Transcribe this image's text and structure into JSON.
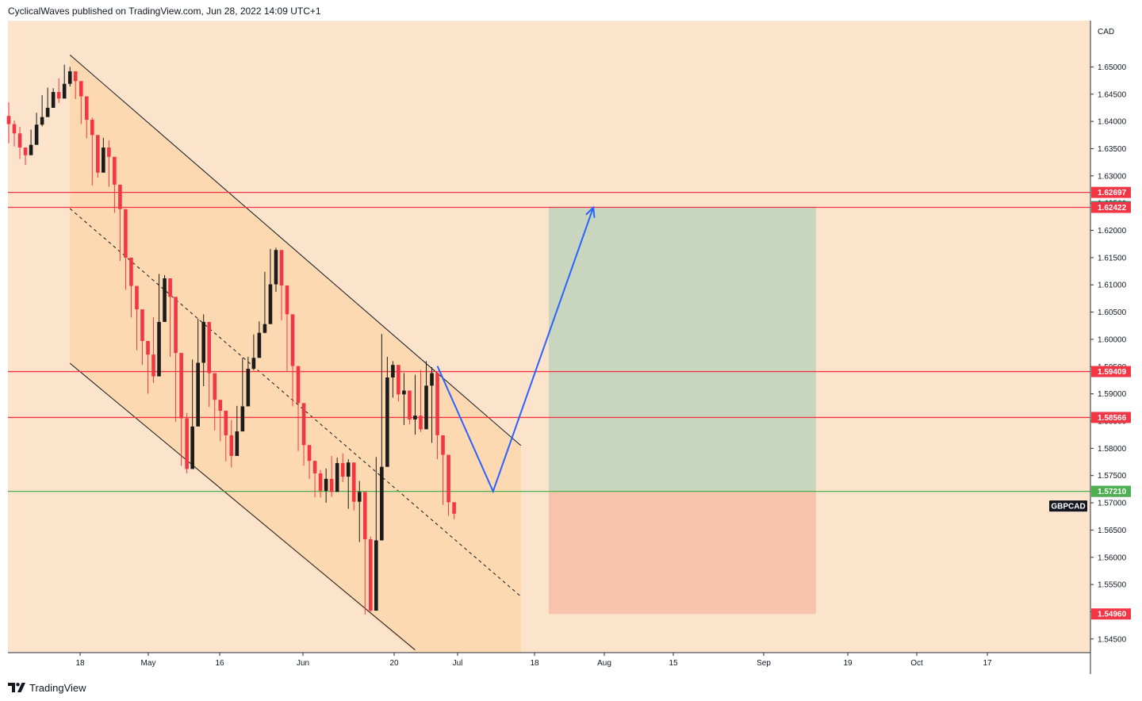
{
  "header": {
    "published_text": "CyclicalWaves published on TradingView.com, Jun 28, 2022 14:09 UTC+1"
  },
  "footer": {
    "brand": "TradingView",
    "logo_icon": "tradingview-logo-icon"
  },
  "colors": {
    "background": "#fbe4cb",
    "channel_fill": "#fdd9b1",
    "candle_up": "#1b1b1b",
    "candle_down": "#f23645",
    "resistance_line": "#f23645",
    "entry_line": "#4caf50",
    "path_line": "#2962ff",
    "target_zone": "#c8d6c0",
    "stop_zone": "#f8c3ad"
  },
  "chart_data": {
    "type": "candlestick",
    "symbol": "GBPCAD",
    "currency": "CAD",
    "ylim": [
      1.5425,
      1.6585
    ],
    "y_ticks": [
      "1.65000",
      "1.64500",
      "1.64000",
      "1.63500",
      "1.63000",
      "1.62500",
      "1.62000",
      "1.61500",
      "1.61000",
      "1.60500",
      "1.60000",
      "1.59500",
      "1.59000",
      "1.58500",
      "1.58000",
      "1.57500",
      "1.57000",
      "1.56500",
      "1.56000",
      "1.55500",
      "1.55000",
      "1.54500"
    ],
    "x_ticks": [
      "18",
      "May",
      "16",
      "Jun",
      "20",
      "Jul",
      "18",
      "Aug",
      "15",
      "Sep",
      "19",
      "Oct",
      "17"
    ],
    "horizontal_levels": [
      {
        "label": "1.62697",
        "value": 1.62697,
        "color": "#f23645",
        "line": true
      },
      {
        "label": "1.62436",
        "value": 1.62436,
        "color": "#089981",
        "line": false
      },
      {
        "label": "1.62422",
        "value": 1.62422,
        "color": "#f23645",
        "line": true
      },
      {
        "label": "1.59409",
        "value": 1.59409,
        "color": "#f23645",
        "line": true
      },
      {
        "label": "1.58566",
        "value": 1.58566,
        "color": "#f23645",
        "line": true
      },
      {
        "label": "1.57210",
        "value": 1.5721,
        "color": "#787b86",
        "line": false
      },
      {
        "label": "1.57210",
        "value": 1.5721,
        "color": "#4caf50",
        "line": true
      },
      {
        "label": "1.54960",
        "value": 1.5496,
        "color": "#f23645",
        "line": false
      }
    ],
    "symbol_tag_value": 1.5694,
    "projection_path": [
      {
        "bar": 77,
        "value": 1.5951
      },
      {
        "bar": 87,
        "value": 1.5721
      },
      {
        "bar": 105,
        "value": 1.6242
      }
    ],
    "position": {
      "entry": 1.5721,
      "target": 1.62436,
      "stop": 1.5496,
      "start_bar": 97,
      "end_bar": 145
    },
    "channel": {
      "upper": [
        {
          "bar": 11,
          "value": 1.6522
        },
        {
          "bar": 92,
          "value": 1.5805
        }
      ],
      "middle": [
        {
          "bar": 11,
          "value": 1.624
        },
        {
          "bar": 92,
          "value": 1.5528
        }
      ],
      "lower": [
        {
          "bar": 11,
          "value": 1.5956
        },
        {
          "bar": 73,
          "value": 1.543
        }
      ],
      "fill_end_bar": 92
    },
    "close": [
      1.6395,
      1.6378,
      1.6352,
      1.6338,
      1.6357,
      1.6394,
      1.6408,
      1.6425,
      1.6454,
      1.6442,
      1.6469,
      1.6492,
      1.6474,
      1.6446,
      1.6403,
      1.6375,
      1.6306,
      1.6352,
      1.6335,
      1.6284,
      1.6239,
      1.615,
      1.6098,
      1.6055,
      1.5997,
      1.5972,
      1.5932,
      1.6032,
      1.6112,
      1.6078,
      1.5975,
      1.5855,
      1.5762,
      1.584,
      1.5957,
      1.6032,
      1.5938,
      1.5889,
      1.5869,
      1.5824,
      1.5786,
      1.5831,
      1.5877,
      1.5946,
      1.5966,
      1.6012,
      1.6028,
      1.6101,
      1.6164,
      1.6099,
      1.6046,
      1.5951,
      1.5883,
      1.5806,
      1.5777,
      1.5754,
      1.5722,
      1.5744,
      1.572,
      1.5773,
      1.5748,
      1.5774,
      1.5702,
      1.572,
      1.5633,
      1.5502,
      1.5631,
      1.5766,
      1.593,
      1.5953,
      1.5899,
      1.5906,
      1.5853,
      1.586,
      1.5835,
      1.5915,
      1.5938,
      1.5824,
      1.5788,
      1.5701,
      1.568
    ],
    "high": [
      1.6435,
      1.6402,
      1.639,
      1.6352,
      1.6385,
      1.6416,
      1.6448,
      1.6462,
      1.6461,
      1.6479,
      1.6504,
      1.65,
      1.6482,
      1.6455,
      1.6416,
      1.6407,
      1.6352,
      1.637,
      1.6365,
      1.6305,
      1.6254,
      1.6183,
      1.6125,
      1.6088,
      1.6009,
      1.5981,
      1.6041,
      1.612,
      1.6118,
      1.6108,
      1.5985,
      1.5886,
      1.5865,
      1.5963,
      1.6038,
      1.6046,
      1.5948,
      1.59,
      1.588,
      1.5847,
      1.5852,
      1.5878,
      1.5966,
      1.5968,
      1.6009,
      1.6033,
      1.6124,
      1.6166,
      1.6168,
      1.6115,
      1.6067,
      1.5961,
      1.59,
      1.5819,
      1.5795,
      1.5771,
      1.576,
      1.5763,
      1.5786,
      1.5783,
      1.5791,
      1.578,
      1.573,
      1.574,
      1.5652,
      1.5638,
      1.5784,
      1.601,
      1.5968,
      1.596,
      1.5919,
      1.5938,
      1.5873,
      1.5935,
      1.5944,
      1.596,
      1.5949,
      1.5838,
      1.5791,
      1.5712,
      1.569
    ],
    "low": [
      1.636,
      1.6354,
      1.6331,
      1.632,
      1.6338,
      1.6374,
      1.6391,
      1.6414,
      1.6425,
      1.6434,
      1.6455,
      1.6464,
      1.6441,
      1.6395,
      1.6369,
      1.6282,
      1.6297,
      1.6325,
      1.628,
      1.6232,
      1.6144,
      1.6091,
      1.604,
      1.598,
      1.5953,
      1.59,
      1.592,
      1.602,
      1.607,
      1.5968,
      1.5849,
      1.5768,
      1.5754,
      1.5829,
      1.5943,
      1.5914,
      1.5876,
      1.5833,
      1.5813,
      1.5776,
      1.5765,
      1.5817,
      1.586,
      1.5922,
      1.5943,
      1.5996,
      1.6011,
      1.6093,
      1.6087,
      1.6035,
      1.5942,
      1.5877,
      1.5795,
      1.5768,
      1.5744,
      1.571,
      1.571,
      1.57,
      1.5711,
      1.5734,
      1.5738,
      1.5689,
      1.5686,
      1.5628,
      1.5495,
      1.55,
      1.5626,
      1.5751,
      1.5885,
      1.5893,
      1.5886,
      1.5843,
      1.5844,
      1.5825,
      1.583,
      1.5907,
      1.581,
      1.578,
      1.5696,
      1.5676,
      1.567
    ]
  }
}
